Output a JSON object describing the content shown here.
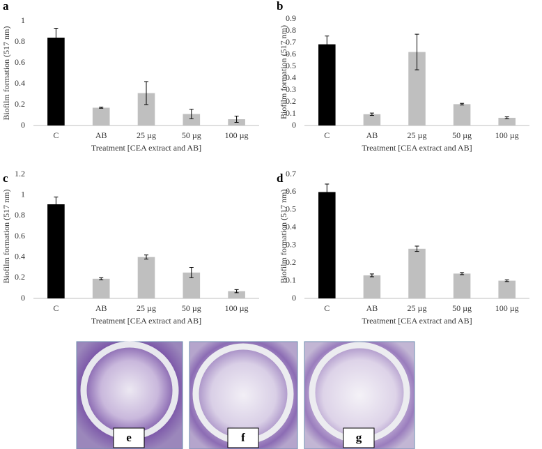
{
  "chart_data": [
    {
      "type": "bar",
      "label": "a",
      "ylabel": "Biofilm formation (517 nm)",
      "xlabel": "Treatment [CEA extract and AB]",
      "categories": [
        "C",
        "AB",
        "25 µg",
        "50 µg",
        "100 µg"
      ],
      "values": [
        0.84,
        0.17,
        0.31,
        0.11,
        0.06
      ],
      "errors": [
        0.09,
        0.005,
        0.11,
        0.045,
        0.03
      ],
      "colors": [
        "#000000",
        "#bfbfbf",
        "#bfbfbf",
        "#bfbfbf",
        "#bfbfbf"
      ],
      "ylim": [
        0,
        1
      ],
      "yticks": [
        0,
        0.2,
        0.4,
        0.6,
        0.8,
        1
      ]
    },
    {
      "type": "bar",
      "label": "b",
      "ylabel": "Biofilm formation (517 nm)",
      "xlabel": "Treatment [CEA extract and AB]",
      "categories": [
        "C",
        "AB",
        "25 µg",
        "50 µg",
        "100 µg"
      ],
      "values": [
        0.685,
        0.095,
        0.62,
        0.18,
        0.065
      ],
      "errors": [
        0.07,
        0.01,
        0.15,
        0.007,
        0.008
      ],
      "colors": [
        "#000000",
        "#bfbfbf",
        "#bfbfbf",
        "#bfbfbf",
        "#bfbfbf"
      ],
      "ylim": [
        0,
        0.9
      ],
      "yticks": [
        0,
        0.1,
        0.2,
        0.3,
        0.4,
        0.5,
        0.6,
        0.7,
        0.8,
        0.9
      ]
    },
    {
      "type": "bar",
      "label": "c",
      "ylabel": "Biofilm formation (517 nm)",
      "xlabel": "Treatment [CEA extract and AB]",
      "categories": [
        "C",
        "AB",
        "25 µg",
        "50 µg",
        "100 µg"
      ],
      "values": [
        0.91,
        0.19,
        0.4,
        0.25,
        0.07
      ],
      "errors": [
        0.07,
        0.01,
        0.02,
        0.05,
        0.015
      ],
      "colors": [
        "#000000",
        "#bfbfbf",
        "#bfbfbf",
        "#bfbfbf",
        "#bfbfbf"
      ],
      "ylim": [
        0,
        1.2
      ],
      "yticks": [
        0,
        0.2,
        0.4,
        0.6,
        0.8,
        1,
        1.2
      ]
    },
    {
      "type": "bar",
      "label": "d",
      "ylabel": "Biofilm formation (517 nm)",
      "xlabel": "Treatment [CEA extract and AB]",
      "categories": [
        "C",
        "AB",
        "25 µg",
        "50 µg",
        "100 µg"
      ],
      "values": [
        0.6,
        0.13,
        0.28,
        0.14,
        0.1
      ],
      "errors": [
        0.045,
        0.008,
        0.015,
        0.006,
        0.005
      ],
      "colors": [
        "#000000",
        "#bfbfbf",
        "#bfbfbf",
        "#bfbfbf",
        "#bfbfbf"
      ],
      "ylim": [
        0,
        0.7
      ],
      "yticks": [
        0,
        0.1,
        0.2,
        0.3,
        0.4,
        0.5,
        0.6,
        0.7
      ]
    }
  ],
  "photos": [
    {
      "label": "e"
    },
    {
      "label": "f"
    },
    {
      "label": "g"
    }
  ]
}
